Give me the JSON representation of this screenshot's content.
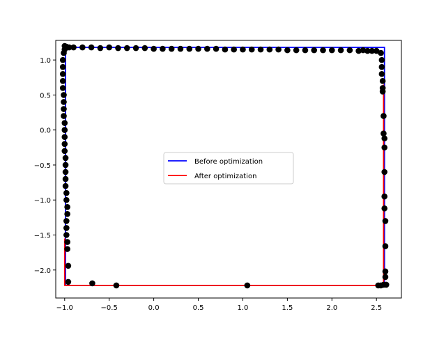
{
  "chart_data": {
    "type": "line",
    "title": "",
    "xlabel": "",
    "ylabel": "",
    "xlim": [
      -1.1,
      2.78
    ],
    "ylim": [
      -2.4,
      1.28
    ],
    "x_ticks": [
      -1.0,
      -0.5,
      0.0,
      0.5,
      1.0,
      1.5,
      2.0,
      2.5
    ],
    "x_tick_labels": [
      "−1.0",
      "−0.5",
      "0.0",
      "0.5",
      "1.0",
      "1.5",
      "2.0",
      "2.5"
    ],
    "y_ticks": [
      1.0,
      0.5,
      0.0,
      -0.5,
      -1.0,
      -1.5,
      -2.0
    ],
    "y_tick_labels": [
      "1.0",
      "0.5",
      "0.0",
      "−0.5",
      "−1.0",
      "−1.5",
      "−2.0"
    ],
    "grid": false,
    "legend_position": "center",
    "series": [
      {
        "name": "Before optimization",
        "color": "#0000ff",
        "points": [
          [
            -0.99,
            -2.22
          ],
          [
            -0.99,
            1.18
          ],
          [
            2.59,
            1.18
          ],
          [
            2.59,
            -2.22
          ],
          [
            -0.99,
            -2.22
          ]
        ]
      },
      {
        "name": "After optimization",
        "color": "#ff0000",
        "points": [
          [
            -1.0,
            -1.55
          ],
          [
            -1.0,
            -2.22
          ],
          [
            2.58,
            -2.22
          ],
          [
            2.58,
            0.65
          ]
        ]
      }
    ],
    "scatter": {
      "color": "#000000",
      "points": [
        [
          -1.0,
          1.2
        ],
        [
          -0.98,
          1.19
        ],
        [
          -0.95,
          1.18
        ],
        [
          -0.9,
          1.18
        ],
        [
          -0.8,
          1.18
        ],
        [
          -0.7,
          1.18
        ],
        [
          -0.6,
          1.17
        ],
        [
          -0.5,
          1.18
        ],
        [
          -0.4,
          1.17
        ],
        [
          -0.3,
          1.17
        ],
        [
          -0.2,
          1.17
        ],
        [
          -0.1,
          1.17
        ],
        [
          0.0,
          1.16
        ],
        [
          0.1,
          1.16
        ],
        [
          0.2,
          1.16
        ],
        [
          0.3,
          1.16
        ],
        [
          0.4,
          1.16
        ],
        [
          0.5,
          1.16
        ],
        [
          0.6,
          1.16
        ],
        [
          0.7,
          1.16
        ],
        [
          0.8,
          1.15
        ],
        [
          0.9,
          1.15
        ],
        [
          1.0,
          1.15
        ],
        [
          1.1,
          1.15
        ],
        [
          1.2,
          1.15
        ],
        [
          1.3,
          1.15
        ],
        [
          1.4,
          1.15
        ],
        [
          1.5,
          1.14
        ],
        [
          1.6,
          1.14
        ],
        [
          1.7,
          1.14
        ],
        [
          1.8,
          1.14
        ],
        [
          1.9,
          1.14
        ],
        [
          2.0,
          1.14
        ],
        [
          2.1,
          1.14
        ],
        [
          2.2,
          1.14
        ],
        [
          2.3,
          1.13
        ],
        [
          2.35,
          1.14
        ],
        [
          2.4,
          1.13
        ],
        [
          2.45,
          1.13
        ],
        [
          2.5,
          1.13
        ],
        [
          2.55,
          1.1
        ],
        [
          2.56,
          1.0
        ],
        [
          2.56,
          0.9
        ],
        [
          2.56,
          0.8
        ],
        [
          2.57,
          0.7
        ],
        [
          2.57,
          0.6
        ],
        [
          2.57,
          0.55
        ],
        [
          2.58,
          0.2
        ],
        [
          2.58,
          -0.05
        ],
        [
          2.59,
          -0.12
        ],
        [
          2.59,
          -0.25
        ],
        [
          2.59,
          -0.6
        ],
        [
          2.59,
          -0.95
        ],
        [
          2.59,
          -1.12
        ],
        [
          2.6,
          -1.3
        ],
        [
          2.6,
          -1.66
        ],
        [
          2.6,
          -2.02
        ],
        [
          2.6,
          -2.1
        ],
        [
          2.61,
          -2.21
        ],
        [
          2.58,
          -2.21
        ],
        [
          2.55,
          -2.22
        ],
        [
          2.52,
          -2.22
        ],
        [
          1.05,
          -2.22
        ],
        [
          -0.42,
          -2.22
        ],
        [
          -0.69,
          -2.19
        ],
        [
          -0.96,
          -2.17
        ],
        [
          -0.96,
          -1.94
        ],
        [
          -0.97,
          -1.7
        ],
        [
          -0.97,
          -1.6
        ],
        [
          -0.98,
          -1.5
        ],
        [
          -0.98,
          -1.4
        ],
        [
          -0.98,
          -1.3
        ],
        [
          -0.97,
          -1.2
        ],
        [
          -0.97,
          -1.1
        ],
        [
          -0.98,
          -1.0
        ],
        [
          -0.98,
          -0.9
        ],
        [
          -0.99,
          -0.8
        ],
        [
          -0.99,
          -0.7
        ],
        [
          -0.99,
          -0.6
        ],
        [
          -0.99,
          -0.5
        ],
        [
          -0.99,
          -0.4
        ],
        [
          -1.0,
          -0.3
        ],
        [
          -1.0,
          -0.2
        ],
        [
          -1.0,
          -0.1
        ],
        [
          -1.0,
          0.0
        ],
        [
          -1.0,
          0.1
        ],
        [
          -1.01,
          0.2
        ],
        [
          -1.01,
          0.3
        ],
        [
          -1.01,
          0.4
        ],
        [
          -1.01,
          0.5
        ],
        [
          -1.02,
          0.6
        ],
        [
          -1.02,
          0.7
        ],
        [
          -1.02,
          0.8
        ],
        [
          -1.02,
          0.9
        ],
        [
          -1.02,
          1.0
        ],
        [
          -1.01,
          1.1
        ],
        [
          -1.0,
          1.15
        ]
      ]
    }
  }
}
